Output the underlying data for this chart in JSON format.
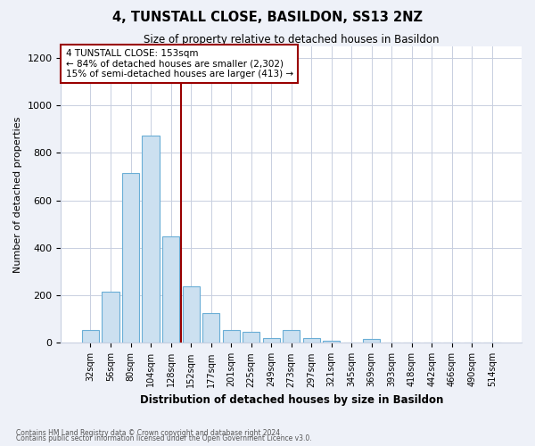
{
  "title": "4, TUNSTALL CLOSE, BASILDON, SS13 2NZ",
  "subtitle": "Size of property relative to detached houses in Basildon",
  "xlabel": "Distribution of detached houses by size in Basildon",
  "ylabel": "Number of detached properties",
  "footnote1": "Contains HM Land Registry data © Crown copyright and database right 2024.",
  "footnote2": "Contains public sector information licensed under the Open Government Licence v3.0.",
  "bar_labels": [
    "32sqm",
    "56sqm",
    "80sqm",
    "104sqm",
    "128sqm",
    "152sqm",
    "177sqm",
    "201sqm",
    "225sqm",
    "249sqm",
    "273sqm",
    "297sqm",
    "321sqm",
    "345sqm",
    "369sqm",
    "393sqm",
    "418sqm",
    "442sqm",
    "466sqm",
    "490sqm",
    "514sqm"
  ],
  "bar_values": [
    55,
    215,
    715,
    875,
    450,
    240,
    125,
    55,
    45,
    20,
    55,
    20,
    10,
    0,
    15,
    0,
    0,
    0,
    0,
    0,
    0
  ],
  "bar_color": "#cce0f0",
  "bar_edge_color": "#6aaed6",
  "vline_index": 4.5,
  "vline_color": "#990000",
  "annotation_text": "4 TUNSTALL CLOSE: 153sqm\n← 84% of detached houses are smaller (2,302)\n15% of semi-detached houses are larger (413) →",
  "annotation_box_color": "white",
  "annotation_box_edge_color": "#990000",
  "ylim": [
    0,
    1250
  ],
  "yticks": [
    0,
    200,
    400,
    600,
    800,
    1000,
    1200
  ],
  "bg_color": "#eef1f8",
  "plot_bg_color": "white",
  "grid_color": "#c8cfe0"
}
